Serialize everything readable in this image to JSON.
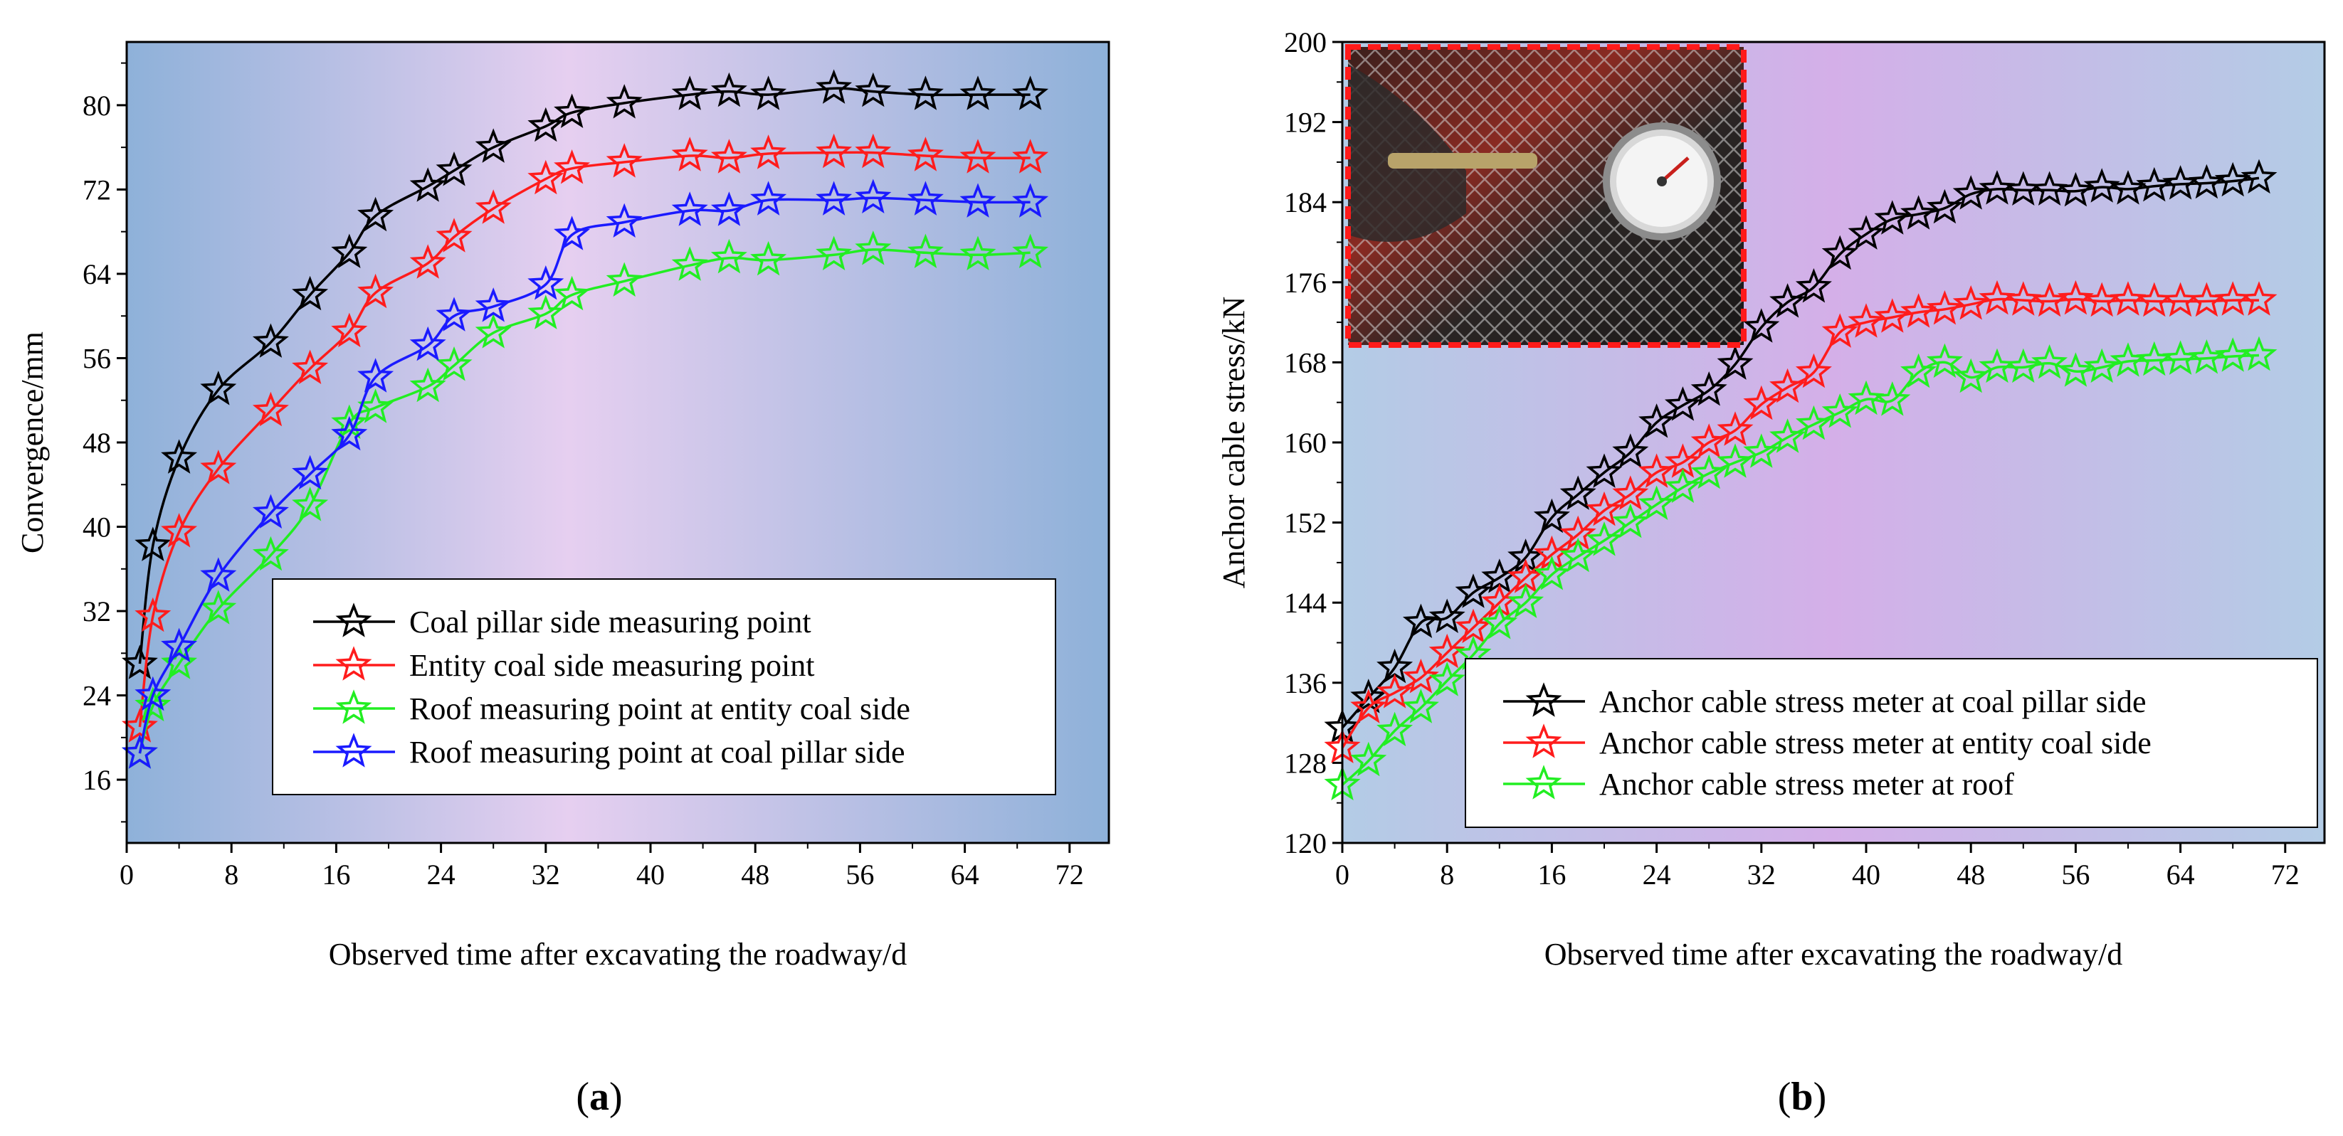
{
  "chart_data": [
    {
      "type": "line",
      "panel_label": {
        "open": "(",
        "letter": "a",
        "close": ")"
      },
      "xlabel": "Observed time after excavating the roadway/d",
      "ylabel": "Convergence/mm",
      "xlim": [
        0,
        75
      ],
      "ylim": [
        10,
        86
      ],
      "xticks": [
        0,
        8,
        16,
        24,
        32,
        40,
        48,
        56,
        64,
        72
      ],
      "yticks": [
        16,
        24,
        32,
        40,
        48,
        56,
        64,
        72,
        80
      ],
      "background": {
        "edge": "#8eb1d9",
        "center": "#e6cff0"
      },
      "legend": {
        "placement": "lower-right"
      },
      "series": [
        {
          "name": "Coal pillar side measuring point",
          "color": "#000000",
          "x": [
            1,
            2,
            4,
            7,
            11,
            14,
            17,
            19,
            23,
            25,
            28,
            32,
            34,
            38,
            43,
            46,
            49,
            54,
            57,
            61,
            65,
            69
          ],
          "y": [
            27,
            38.2,
            46.5,
            53,
            57.5,
            62,
            66,
            69.5,
            72.3,
            73.8,
            76,
            78,
            79.3,
            80.2,
            81,
            81.3,
            81,
            81.6,
            81.3,
            81,
            81,
            81
          ]
        },
        {
          "name": "Entity coal side measuring point",
          "color": "#ff1c1c",
          "x": [
            1,
            2,
            4,
            7,
            11,
            14,
            17,
            19,
            23,
            25,
            28,
            32,
            34,
            38,
            43,
            46,
            49,
            54,
            57,
            61,
            65,
            69
          ],
          "y": [
            21,
            31.5,
            39.5,
            45.5,
            51,
            55,
            58.5,
            62.2,
            65,
            67.5,
            70.2,
            73,
            74,
            74.6,
            75.2,
            75,
            75.4,
            75.5,
            75.5,
            75.2,
            75,
            75
          ]
        },
        {
          "name": "Roof measuring point at entity coal side",
          "color": "#22ee22",
          "x": [
            1,
            2,
            4,
            7,
            11,
            14,
            17,
            19,
            23,
            25,
            28,
            32,
            34,
            38,
            43,
            46,
            49,
            54,
            57,
            61,
            65,
            69
          ],
          "y": [
            18.5,
            23,
            27,
            32.2,
            37.3,
            42,
            49.8,
            51.3,
            53.3,
            55.3,
            58.4,
            60.2,
            62,
            63.3,
            64.8,
            65.5,
            65.3,
            65.8,
            66.3,
            66,
            65.8,
            66
          ]
        },
        {
          "name": "Roof measuring point at coal pillar side",
          "color": "#1a1aff",
          "x": [
            1,
            2,
            4,
            7,
            11,
            14,
            17,
            19,
            23,
            25,
            28,
            32,
            34,
            38,
            43,
            46,
            49,
            54,
            57,
            61,
            65,
            69
          ],
          "y": [
            18.5,
            24,
            28.6,
            35.3,
            41.3,
            45,
            48.7,
            54.2,
            57.2,
            60,
            60.9,
            63,
            67.7,
            68.9,
            70,
            70,
            71,
            71,
            71.2,
            71,
            70.8,
            70.8
          ]
        }
      ]
    },
    {
      "type": "line",
      "panel_label": {
        "open": "(",
        "letter": "b",
        "close": ")"
      },
      "xlabel": "Observed time after excavating the roadway/d",
      "ylabel": "Anchor cable stress/kN",
      "xlim": [
        0,
        75
      ],
      "ylim": [
        120,
        200
      ],
      "xticks": [
        0,
        8,
        16,
        24,
        32,
        40,
        48,
        56,
        64,
        72
      ],
      "yticks": [
        120,
        128,
        136,
        144,
        152,
        160,
        168,
        176,
        184,
        192,
        200
      ],
      "background": {
        "edge": "#b3cce6",
        "center": "#d4afe8"
      },
      "legend": {
        "placement": "lower-right"
      },
      "inset_photo": {
        "description_icon": "gauge-photo-icon",
        "placement": "top-left"
      },
      "series": [
        {
          "name": "Anchor cable stress meter at coal pillar side",
          "color": "#000000",
          "x": [
            0,
            2,
            4,
            6,
            8,
            10,
            12,
            14,
            16,
            18,
            20,
            22,
            24,
            26,
            28,
            30,
            32,
            34,
            36,
            38,
            40,
            42,
            44,
            46,
            48,
            50,
            52,
            54,
            56,
            58,
            60,
            62,
            64,
            66,
            68,
            70
          ],
          "y": [
            131.5,
            134.5,
            137.5,
            142,
            142.5,
            145,
            146.5,
            148.5,
            152.5,
            154.8,
            157,
            159,
            162,
            163.7,
            165.2,
            167.8,
            171.5,
            174,
            175.5,
            178.8,
            180.8,
            182.3,
            182.8,
            183.4,
            184.8,
            185.3,
            185.2,
            185.2,
            185.1,
            185.5,
            185.3,
            185.6,
            185.8,
            185.9,
            186.1,
            186.4
          ]
        },
        {
          "name": "Anchor cable stress meter at entity coal side",
          "color": "#ff1c1c",
          "x": [
            0,
            2,
            4,
            6,
            8,
            10,
            12,
            14,
            16,
            18,
            20,
            22,
            24,
            26,
            28,
            30,
            32,
            34,
            36,
            38,
            40,
            42,
            44,
            46,
            48,
            50,
            52,
            54,
            56,
            58,
            60,
            62,
            64,
            66,
            68,
            70
          ],
          "y": [
            129.5,
            133.5,
            135,
            136.5,
            139,
            141.5,
            144,
            146.5,
            148.8,
            150.8,
            153.2,
            154.8,
            157,
            158,
            160,
            161.2,
            163.8,
            165.5,
            167,
            171,
            172,
            172.5,
            173,
            173.3,
            173.8,
            174.3,
            174.2,
            174.1,
            174.3,
            174.1,
            174.2,
            174.1,
            174.1,
            174.1,
            174.2,
            174.2
          ]
        },
        {
          "name": "Anchor cable stress meter at roof",
          "color": "#22ee22",
          "x": [
            0,
            2,
            4,
            6,
            8,
            10,
            12,
            14,
            16,
            18,
            20,
            22,
            24,
            26,
            28,
            30,
            32,
            34,
            36,
            38,
            40,
            42,
            44,
            46,
            48,
            50,
            52,
            54,
            56,
            58,
            60,
            62,
            64,
            66,
            68,
            70
          ],
          "y": [
            125.8,
            128.2,
            131.2,
            133.5,
            136.2,
            138.8,
            141.9,
            144,
            146.8,
            148.6,
            150.2,
            152,
            153.8,
            155.5,
            156.9,
            158,
            159,
            160.5,
            161.8,
            163,
            164.3,
            164.2,
            167,
            168,
            166.5,
            167.5,
            167.5,
            167.9,
            167.1,
            167.5,
            168.1,
            168.2,
            168.3,
            168.4,
            168.6,
            168.7
          ]
        }
      ]
    }
  ]
}
